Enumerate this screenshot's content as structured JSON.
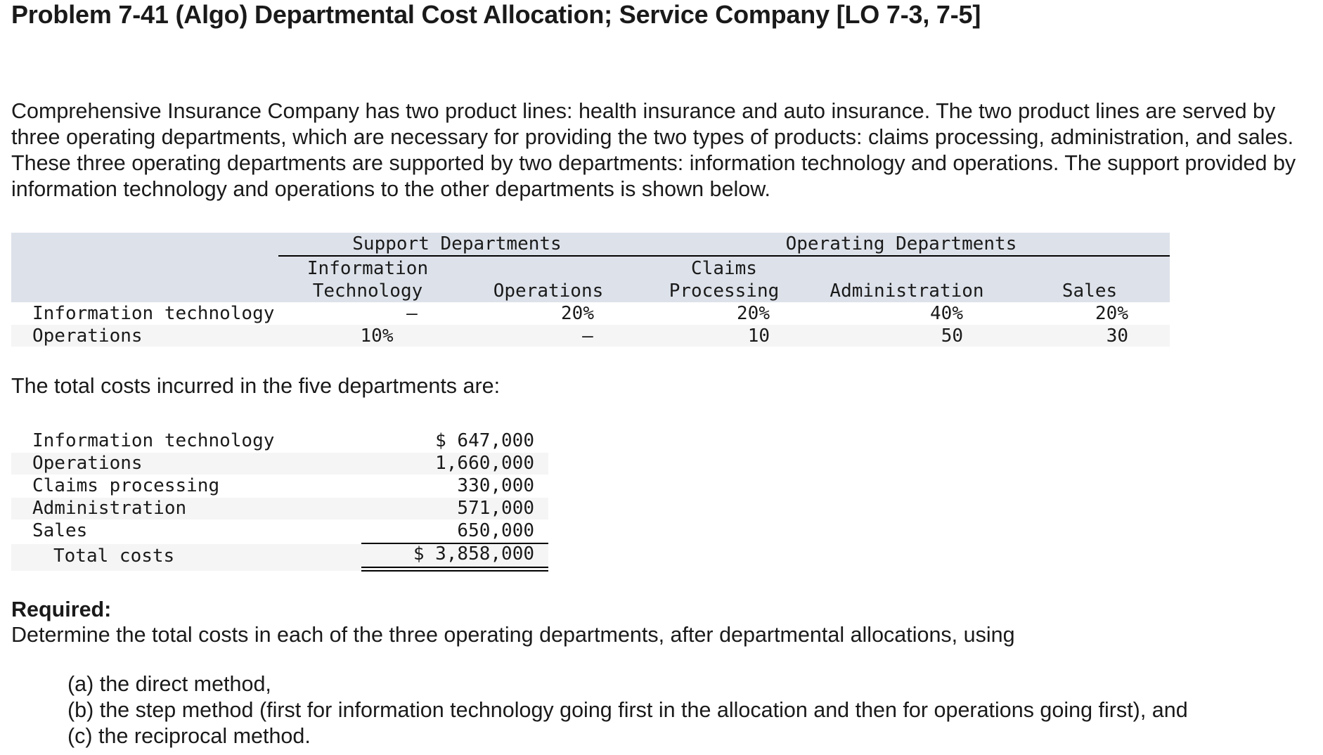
{
  "title": "Problem 7-41 (Algo) Departmental Cost Allocation; Service Company [LO 7-3, 7-5]",
  "intro": "Comprehensive Insurance Company has two product lines: health insurance and auto insurance. The two product lines are served by three operating departments, which are necessary for providing the two types of products: claims processing, administration, and sales. These three operating departments are supported by two departments: information technology and operations. The support provided by information technology and operations to the other departments is shown below.",
  "support_table": {
    "group_headers": {
      "support": "Support Departments",
      "operating": "Operating Departments"
    },
    "columns": [
      {
        "line1": "Information",
        "line2": "Technology"
      },
      {
        "line1": "",
        "line2": "Operations"
      },
      {
        "line1": "Claims",
        "line2": "Processing"
      },
      {
        "line1": "",
        "line2": "Administration"
      },
      {
        "line1": "",
        "line2": "Sales"
      }
    ],
    "rows": [
      {
        "label": "Information technology",
        "values": [
          "–",
          "20%",
          "20%",
          "40%",
          "20%"
        ]
      },
      {
        "label": "Operations",
        "values": [
          "10%",
          "–",
          "10",
          "50",
          "30"
        ]
      }
    ]
  },
  "costs_intro": "The total costs incurred in the five departments are:",
  "costs_table": {
    "rows": [
      {
        "label": "Information technology",
        "value": "$ 647,000"
      },
      {
        "label": "Operations",
        "value": "1,660,000"
      },
      {
        "label": "Claims processing",
        "value": "330,000"
      },
      {
        "label": "Administration",
        "value": "571,000"
      },
      {
        "label": "Sales",
        "value": "650,000"
      }
    ],
    "total": {
      "label": "Total costs",
      "value": "$ 3,858,000"
    }
  },
  "required": {
    "heading": "Required:",
    "text": "Determine the total costs in each of the three operating departments, after departmental allocations, using",
    "items": [
      "(a) the direct method,",
      "(b) the step method (first for information technology going first in the allocation and then for operations going first), and",
      "(c) the reciprocal method."
    ]
  }
}
